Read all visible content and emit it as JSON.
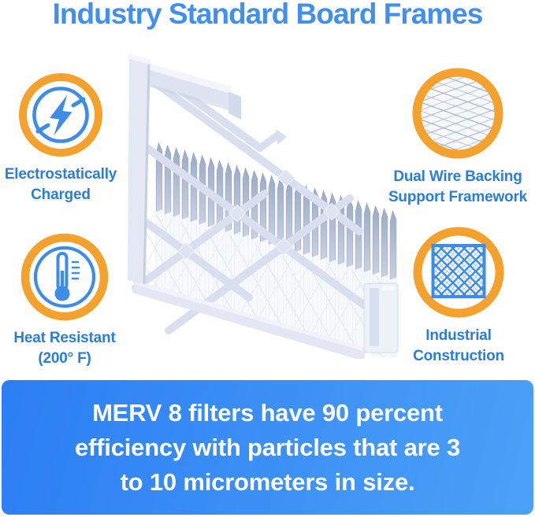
{
  "title": "Industry Standard Board Frames",
  "features": [
    {
      "id": "electrostatically-charged",
      "icon": "lightning-bolt-icon",
      "lines": [
        "Electrostatically",
        "Charged"
      ]
    },
    {
      "id": "dual-wire-backing",
      "icon": "wire-mesh-photo-icon",
      "lines": [
        "Dual Wire Backing",
        "Support Framework"
      ]
    },
    {
      "id": "heat-resistant",
      "icon": "thermometer-icon",
      "lines": [
        "Heat Resistant",
        "(200° F)"
      ]
    },
    {
      "id": "industrial-construction",
      "icon": "grid-lattice-icon",
      "lines": [
        "Industrial",
        "Construction"
      ]
    }
  ],
  "banner": {
    "line1": "MERV 8 filters have 90 percent",
    "line2": "efficiency with particles that are 3",
    "line3": "to 10 micrometers in size."
  },
  "product_image": "pleated-air-filter-corner-cutaway",
  "colors": {
    "title_blue": "#4190EE",
    "label_blue": "#2B7ED7",
    "accent_orange": "#F5A12E",
    "icon_blue": "#3D8CE8",
    "banner_g1": "#2C7EF4",
    "banner_g2": "#4BA1F6",
    "banner_text": "#FFFFFF"
  }
}
